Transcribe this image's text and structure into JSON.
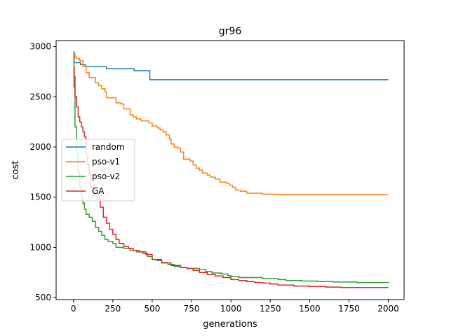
{
  "chart_data": {
    "type": "line",
    "title": "gr96",
    "xlabel": "generations",
    "ylabel": "cost",
    "xlim": [
      -110,
      2100
    ],
    "ylim": [
      480,
      3060
    ],
    "xticks": [
      0,
      250,
      500,
      750,
      1000,
      1250,
      1500,
      1750,
      2000
    ],
    "yticks": [
      500,
      1000,
      1500,
      2000,
      2500,
      3000
    ],
    "grid": false,
    "legend_position": "center-left",
    "series": [
      {
        "name": "random",
        "color": "#1f77b4",
        "step": true,
        "points": [
          [
            0,
            2900
          ],
          [
            5,
            2840
          ],
          [
            40,
            2840
          ],
          [
            45,
            2820
          ],
          [
            70,
            2820
          ],
          [
            75,
            2800
          ],
          [
            205,
            2800
          ],
          [
            210,
            2780
          ],
          [
            380,
            2780
          ],
          [
            385,
            2760
          ],
          [
            480,
            2760
          ],
          [
            485,
            2670
          ],
          [
            2000,
            2670
          ]
        ]
      },
      {
        "name": "pso-v1",
        "color": "#ff7f0e",
        "step": true,
        "points": [
          [
            0,
            2930
          ],
          [
            10,
            2900
          ],
          [
            20,
            2880
          ],
          [
            40,
            2860
          ],
          [
            60,
            2800
          ],
          [
            80,
            2740
          ],
          [
            100,
            2690
          ],
          [
            120,
            2690
          ],
          [
            140,
            2640
          ],
          [
            160,
            2610
          ],
          [
            180,
            2580
          ],
          [
            200,
            2550
          ],
          [
            210,
            2490
          ],
          [
            260,
            2490
          ],
          [
            270,
            2440
          ],
          [
            300,
            2430
          ],
          [
            320,
            2380
          ],
          [
            360,
            2320
          ],
          [
            380,
            2300
          ],
          [
            400,
            2280
          ],
          [
            430,
            2260
          ],
          [
            460,
            2260
          ],
          [
            480,
            2240
          ],
          [
            500,
            2210
          ],
          [
            530,
            2190
          ],
          [
            550,
            2170
          ],
          [
            570,
            2150
          ],
          [
            590,
            2120
          ],
          [
            610,
            2080
          ],
          [
            620,
            2030
          ],
          [
            640,
            2000
          ],
          [
            660,
            1990
          ],
          [
            680,
            1950
          ],
          [
            700,
            1880
          ],
          [
            740,
            1860
          ],
          [
            760,
            1820
          ],
          [
            780,
            1790
          ],
          [
            800,
            1770
          ],
          [
            820,
            1740
          ],
          [
            850,
            1720
          ],
          [
            870,
            1700
          ],
          [
            900,
            1680
          ],
          [
            930,
            1650
          ],
          [
            970,
            1640
          ],
          [
            990,
            1620
          ],
          [
            1010,
            1600
          ],
          [
            1030,
            1570
          ],
          [
            1060,
            1560
          ],
          [
            1100,
            1540
          ],
          [
            1200,
            1530
          ],
          [
            1300,
            1525
          ],
          [
            1400,
            1525
          ],
          [
            1600,
            1525
          ],
          [
            1800,
            1525
          ],
          [
            2000,
            1525
          ]
        ]
      },
      {
        "name": "pso-v2",
        "color": "#2ca02c",
        "step": true,
        "points": [
          [
            0,
            2950
          ],
          [
            3,
            2600
          ],
          [
            10,
            2200
          ],
          [
            20,
            1950
          ],
          [
            30,
            1750
          ],
          [
            40,
            1600
          ],
          [
            50,
            1500
          ],
          [
            60,
            1440
          ],
          [
            70,
            1380
          ],
          [
            80,
            1330
          ],
          [
            100,
            1300
          ],
          [
            120,
            1260
          ],
          [
            140,
            1200
          ],
          [
            160,
            1160
          ],
          [
            180,
            1120
          ],
          [
            200,
            1080
          ],
          [
            220,
            1060
          ],
          [
            250,
            1040
          ],
          [
            270,
            1000
          ],
          [
            320,
            990
          ],
          [
            360,
            970
          ],
          [
            400,
            955
          ],
          [
            440,
            940
          ],
          [
            470,
            910
          ],
          [
            500,
            880
          ],
          [
            530,
            870
          ],
          [
            560,
            850
          ],
          [
            600,
            830
          ],
          [
            640,
            810
          ],
          [
            680,
            800
          ],
          [
            720,
            790
          ],
          [
            800,
            780
          ],
          [
            840,
            760
          ],
          [
            880,
            745
          ],
          [
            940,
            735
          ],
          [
            980,
            720
          ],
          [
            1000,
            710
          ],
          [
            1050,
            700
          ],
          [
            1200,
            690
          ],
          [
            1300,
            680
          ],
          [
            1350,
            670
          ],
          [
            1450,
            665
          ],
          [
            1550,
            660
          ],
          [
            1650,
            655
          ],
          [
            1800,
            650
          ],
          [
            1900,
            650
          ],
          [
            2000,
            645
          ]
        ]
      },
      {
        "name": "GA",
        "color": "#d62728",
        "step": true,
        "points": [
          [
            0,
            2800
          ],
          [
            5,
            2700
          ],
          [
            10,
            2500
          ],
          [
            20,
            2400
          ],
          [
            30,
            2300
          ],
          [
            40,
            2250
          ],
          [
            50,
            2200
          ],
          [
            60,
            2150
          ],
          [
            70,
            2100
          ],
          [
            80,
            1920
          ],
          [
            90,
            1830
          ],
          [
            100,
            1720
          ],
          [
            110,
            1600
          ],
          [
            130,
            1520
          ],
          [
            150,
            1480
          ],
          [
            170,
            1400
          ],
          [
            190,
            1300
          ],
          [
            210,
            1240
          ],
          [
            230,
            1180
          ],
          [
            250,
            1130
          ],
          [
            270,
            1080
          ],
          [
            290,
            1040
          ],
          [
            320,
            1010
          ],
          [
            350,
            990
          ],
          [
            380,
            970
          ],
          [
            420,
            955
          ],
          [
            460,
            930
          ],
          [
            500,
            880
          ],
          [
            560,
            845
          ],
          [
            620,
            820
          ],
          [
            680,
            800
          ],
          [
            720,
            790
          ],
          [
            760,
            770
          ],
          [
            800,
            750
          ],
          [
            850,
            730
          ],
          [
            900,
            715
          ],
          [
            950,
            700
          ],
          [
            1000,
            680
          ],
          [
            1050,
            670
          ],
          [
            1100,
            660
          ],
          [
            1150,
            650
          ],
          [
            1200,
            645
          ],
          [
            1250,
            635
          ],
          [
            1300,
            625
          ],
          [
            1400,
            615
          ],
          [
            1500,
            610
          ],
          [
            1600,
            605
          ],
          [
            1700,
            600
          ],
          [
            1800,
            600
          ],
          [
            2000,
            600
          ]
        ]
      }
    ]
  }
}
